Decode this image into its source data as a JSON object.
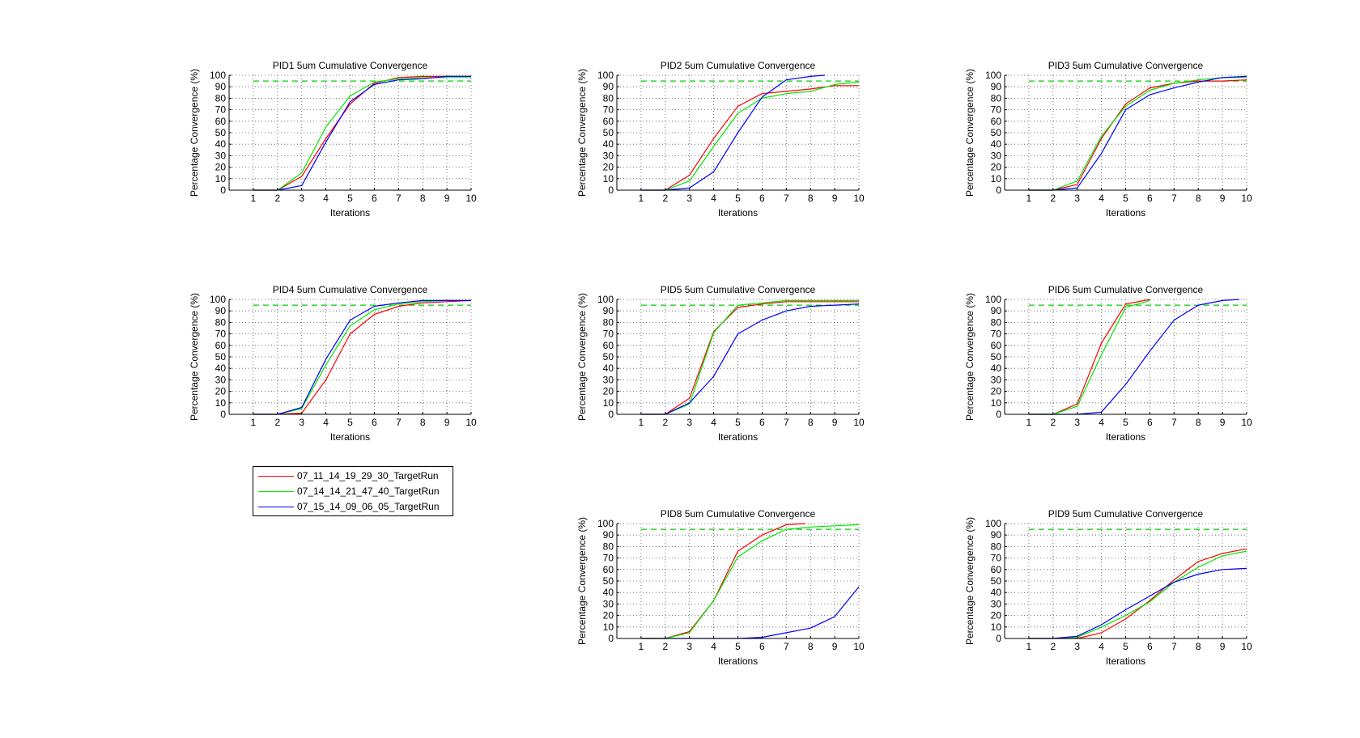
{
  "chart_data": [
    {
      "type": "line",
      "title": "PID1 5um Cumulative Convergence",
      "xlabel": "Iterations",
      "ylabel": "Percentage Convergence (%)",
      "xlim": [
        0,
        10
      ],
      "ylim": [
        0,
        100
      ],
      "xticks": [
        "1",
        "2",
        "3",
        "4",
        "5",
        "6",
        "7",
        "8",
        "9",
        "10"
      ],
      "yticks": [
        "0",
        "10",
        "20",
        "30",
        "40",
        "50",
        "60",
        "70",
        "80",
        "90",
        "100"
      ],
      "grid": true,
      "reference_line": 95,
      "series": [
        {
          "name": "07_11_14_19_29_30_TargetRun",
          "x": [
            1,
            2,
            3,
            4,
            5,
            6,
            7,
            8,
            9,
            10
          ],
          "values": [
            0,
            0,
            12,
            45,
            75,
            93,
            98,
            99,
            99,
            99
          ]
        },
        {
          "name": "07_14_14_21_47_40_TargetRun",
          "x": [
            1,
            2,
            3,
            4,
            5,
            6,
            7,
            8,
            9,
            10
          ],
          "values": [
            0,
            0,
            15,
            55,
            82,
            94,
            97,
            98,
            98,
            98
          ]
        },
        {
          "name": "07_15_14_09_06_05_TargetRun",
          "x": [
            1,
            2,
            3,
            4,
            5,
            6,
            7,
            8,
            9,
            10
          ],
          "values": [
            0,
            0,
            4,
            42,
            77,
            92,
            96,
            97,
            99,
            99
          ]
        }
      ]
    },
    {
      "type": "line",
      "title": "PID2 5um Cumulative Convergence",
      "xlabel": "Iterations",
      "ylabel": "Percentage Convergence (%)",
      "xlim": [
        0,
        10
      ],
      "ylim": [
        0,
        100
      ],
      "xticks": [
        "1",
        "2",
        "3",
        "4",
        "5",
        "6",
        "7",
        "8",
        "9",
        "10"
      ],
      "yticks": [
        "0",
        "10",
        "20",
        "30",
        "40",
        "50",
        "60",
        "70",
        "80",
        "90",
        "100"
      ],
      "grid": true,
      "reference_line": 95,
      "series": [
        {
          "name": "07_11_14_19_29_30_TargetRun",
          "x": [
            1,
            2,
            3,
            4,
            5,
            6,
            7,
            8,
            9,
            10
          ],
          "values": [
            0,
            0,
            13,
            45,
            73,
            84,
            86,
            88,
            91,
            91
          ]
        },
        {
          "name": "07_14_14_21_47_40_TargetRun",
          "x": [
            1,
            2,
            3,
            4,
            5,
            6,
            7,
            8,
            9,
            10
          ],
          "values": [
            0,
            0,
            8,
            38,
            67,
            80,
            84,
            86,
            92,
            94
          ]
        },
        {
          "name": "07_15_14_09_06_05_TargetRun",
          "x": [
            1,
            2,
            3,
            4,
            5,
            6,
            7,
            8,
            8.6
          ],
          "values": [
            0,
            0,
            2,
            16,
            50,
            81,
            96,
            99,
            100
          ]
        }
      ]
    },
    {
      "type": "line",
      "title": "PID3 5um Cumulative Convergence",
      "xlabel": "Iterations",
      "ylabel": "Percentage Convergence (%)",
      "xlim": [
        0,
        10
      ],
      "ylim": [
        0,
        100
      ],
      "xticks": [
        "1",
        "2",
        "3",
        "4",
        "5",
        "6",
        "7",
        "8",
        "9",
        "10"
      ],
      "yticks": [
        "0",
        "10",
        "20",
        "30",
        "40",
        "50",
        "60",
        "70",
        "80",
        "90",
        "100"
      ],
      "grid": true,
      "reference_line": 95,
      "series": [
        {
          "name": "07_11_14_19_29_30_TargetRun",
          "x": [
            1,
            2,
            3,
            4,
            5,
            6,
            7,
            8,
            9,
            10
          ],
          "values": [
            0,
            0,
            5,
            45,
            75,
            89,
            93,
            95,
            95,
            96
          ]
        },
        {
          "name": "07_14_14_21_47_40_TargetRun",
          "x": [
            1,
            2,
            3,
            4,
            5,
            6,
            7,
            8,
            9,
            10
          ],
          "values": [
            0,
            0,
            8,
            47,
            73,
            87,
            93,
            96,
            98,
            98
          ]
        },
        {
          "name": "07_15_14_09_06_05_TargetRun",
          "x": [
            1,
            2,
            3,
            4,
            5,
            6,
            7,
            8,
            9,
            10
          ],
          "values": [
            0,
            0,
            2,
            32,
            70,
            83,
            89,
            94,
            98,
            99
          ]
        }
      ]
    },
    {
      "type": "line",
      "title": "PID4 5um Cumulative Convergence",
      "xlabel": "Iterations",
      "ylabel": "Percentage Convergence (%)",
      "xlim": [
        0,
        10
      ],
      "ylim": [
        0,
        100
      ],
      "xticks": [
        "1",
        "2",
        "3",
        "4",
        "5",
        "6",
        "7",
        "8",
        "9",
        "10"
      ],
      "yticks": [
        "0",
        "10",
        "20",
        "30",
        "40",
        "50",
        "60",
        "70",
        "80",
        "90",
        "100"
      ],
      "grid": true,
      "reference_line": 95,
      "series": [
        {
          "name": "07_11_14_19_29_30_TargetRun",
          "x": [
            1,
            2,
            3,
            4,
            5,
            6,
            7,
            8,
            9,
            10
          ],
          "values": [
            0,
            0,
            1,
            30,
            70,
            87,
            94,
            97,
            98,
            99
          ]
        },
        {
          "name": "07_14_14_21_47_40_TargetRun",
          "x": [
            1,
            2,
            3,
            4,
            5,
            6,
            7,
            8,
            9,
            10
          ],
          "values": [
            0,
            0,
            5,
            43,
            77,
            91,
            96,
            98,
            99,
            99
          ]
        },
        {
          "name": "07_15_14_09_06_05_TargetRun",
          "x": [
            1,
            2,
            3,
            4,
            5,
            6,
            7,
            8,
            9,
            10
          ],
          "values": [
            0,
            0,
            6,
            48,
            82,
            94,
            97,
            99,
            99,
            99
          ]
        }
      ]
    },
    {
      "type": "line",
      "title": "PID5 5um Cumulative Convergence",
      "xlabel": "Iterations",
      "ylabel": "Percentage Convergence (%)",
      "xlim": [
        0,
        10
      ],
      "ylim": [
        0,
        100
      ],
      "xticks": [
        "1",
        "2",
        "3",
        "4",
        "5",
        "6",
        "7",
        "8",
        "9",
        "10"
      ],
      "yticks": [
        "0",
        "10",
        "20",
        "30",
        "40",
        "50",
        "60",
        "70",
        "80",
        "90",
        "100"
      ],
      "grid": true,
      "reference_line": 95,
      "series": [
        {
          "name": "07_11_14_19_29_30_TargetRun",
          "x": [
            1,
            2,
            3,
            4,
            5,
            6,
            7,
            8,
            9,
            10
          ],
          "values": [
            0,
            0,
            14,
            72,
            93,
            96,
            98,
            98,
            98,
            98
          ]
        },
        {
          "name": "07_14_14_21_47_40_TargetRun",
          "x": [
            1,
            2,
            3,
            4,
            5,
            6,
            7,
            8,
            9,
            10
          ],
          "values": [
            0,
            0,
            9,
            71,
            95,
            97,
            99,
            99,
            99,
            99
          ]
        },
        {
          "name": "07_15_14_09_06_05_TargetRun",
          "x": [
            1,
            2,
            3,
            4,
            5,
            6,
            7,
            8,
            9,
            10
          ],
          "values": [
            0,
            0,
            10,
            33,
            70,
            82,
            90,
            94,
            95,
            96
          ]
        }
      ]
    },
    {
      "type": "line",
      "title": "PID6 5um Cumulative Convergence",
      "xlabel": "Iterations",
      "ylabel": "Percentage Convergence (%)",
      "xlim": [
        0,
        10
      ],
      "ylim": [
        0,
        100
      ],
      "xticks": [
        "1",
        "2",
        "3",
        "4",
        "5",
        "6",
        "7",
        "8",
        "9",
        "10"
      ],
      "yticks": [
        "0",
        "10",
        "20",
        "30",
        "40",
        "50",
        "60",
        "70",
        "80",
        "90",
        "100"
      ],
      "grid": true,
      "reference_line": 95,
      "series": [
        {
          "name": "07_11_14_19_29_30_TargetRun",
          "x": [
            1,
            2,
            3,
            4,
            5,
            6
          ],
          "values": [
            0,
            0,
            9,
            62,
            96,
            100
          ]
        },
        {
          "name": "07_14_14_21_47_40_TargetRun",
          "x": [
            1,
            2,
            3,
            4,
            5,
            6
          ],
          "values": [
            0,
            0,
            7,
            52,
            93,
            99
          ]
        },
        {
          "name": "07_15_14_09_06_05_TargetRun",
          "x": [
            1,
            2,
            3,
            4,
            5,
            6,
            7,
            8,
            9,
            9.7
          ],
          "values": [
            0,
            0,
            0,
            2,
            26,
            55,
            82,
            95,
            99,
            100
          ]
        }
      ]
    },
    {
      "type": "line",
      "title": "PID8 5um Cumulative Convergence",
      "xlabel": "Iterations",
      "ylabel": "Percentage Convergence (%)",
      "xlim": [
        0,
        10
      ],
      "ylim": [
        0,
        100
      ],
      "xticks": [
        "1",
        "2",
        "3",
        "4",
        "5",
        "6",
        "7",
        "8",
        "9",
        "10"
      ],
      "yticks": [
        "0",
        "10",
        "20",
        "30",
        "40",
        "50",
        "60",
        "70",
        "80",
        "90",
        "100"
      ],
      "grid": true,
      "reference_line": 95,
      "series": [
        {
          "name": "07_11_14_19_29_30_TargetRun",
          "x": [
            1,
            2,
            3,
            4,
            5,
            6,
            7,
            7.8
          ],
          "values": [
            0,
            0,
            6,
            33,
            76,
            90,
            99,
            100
          ]
        },
        {
          "name": "07_14_14_21_47_40_TargetRun",
          "x": [
            1,
            2,
            3,
            4,
            5,
            6,
            7,
            8,
            9,
            10
          ],
          "values": [
            0,
            0,
            5,
            33,
            71,
            85,
            95,
            97,
            98,
            99
          ]
        },
        {
          "name": "07_15_14_09_06_05_TargetRun",
          "x": [
            1,
            2,
            3,
            4,
            5,
            6,
            7,
            8,
            9,
            10
          ],
          "values": [
            0,
            0,
            0,
            0,
            0,
            1,
            5,
            9,
            19,
            45
          ]
        }
      ]
    },
    {
      "type": "line",
      "title": "PID9 5um Cumulative Convergence",
      "xlabel": "Iterations",
      "ylabel": "Percentage Convergence (%)",
      "xlim": [
        0,
        10
      ],
      "ylim": [
        0,
        100
      ],
      "xticks": [
        "1",
        "2",
        "3",
        "4",
        "5",
        "6",
        "7",
        "8",
        "9",
        "10"
      ],
      "yticks": [
        "0",
        "10",
        "20",
        "30",
        "40",
        "50",
        "60",
        "70",
        "80",
        "90",
        "100"
      ],
      "grid": true,
      "reference_line": 95,
      "series": [
        {
          "name": "07_11_14_19_29_30_TargetRun",
          "x": [
            1,
            2,
            3,
            4,
            5,
            6,
            7,
            8,
            9,
            10
          ],
          "values": [
            0,
            0,
            0,
            5,
            17,
            33,
            51,
            67,
            74,
            78
          ]
        },
        {
          "name": "07_14_14_21_47_40_TargetRun",
          "x": [
            1,
            2,
            3,
            4,
            5,
            6,
            7,
            8,
            9,
            10
          ],
          "values": [
            0,
            0,
            1,
            10,
            20,
            32,
            49,
            62,
            72,
            76
          ]
        },
        {
          "name": "07_15_14_09_06_05_TargetRun",
          "x": [
            1,
            2,
            3,
            4,
            5,
            6,
            7,
            8,
            9,
            10
          ],
          "values": [
            0,
            0,
            2,
            12,
            25,
            37,
            49,
            56,
            60,
            61
          ]
        }
      ]
    }
  ],
  "colors": {
    "07_11_14_19_29_30_TargetRun": "#ff0000",
    "07_14_14_21_47_40_TargetRun": "#00e600",
    "07_15_14_09_06_05_TargetRun": "#0000ff",
    "reference_line": "#00cc00"
  },
  "legend": {
    "placement": "below-left",
    "entries": [
      {
        "label": "07_11_14_19_29_30_TargetRun",
        "color": "#ff0000"
      },
      {
        "label": "07_14_14_21_47_40_TargetRun",
        "color": "#00e600"
      },
      {
        "label": "07_15_14_09_06_05_TargetRun",
        "color": "#0000ff"
      }
    ]
  }
}
